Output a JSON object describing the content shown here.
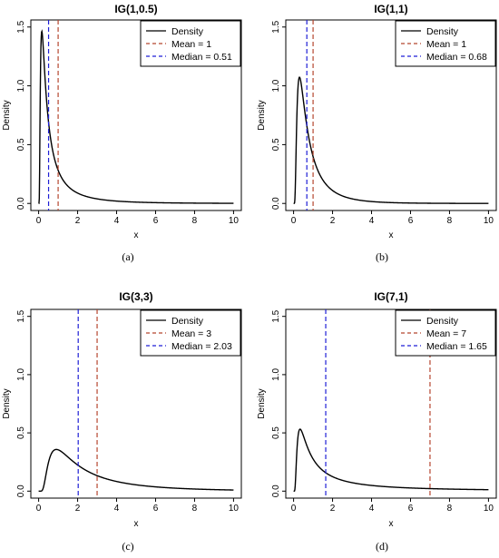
{
  "figure": {
    "captions": [
      "(a)",
      "(b)",
      "(c)",
      "(d)"
    ]
  },
  "chart_data": [
    {
      "type": "line",
      "title": "IG(1,0.5)",
      "xlabel": "x",
      "ylabel": "Density",
      "xlim": [
        0,
        10
      ],
      "ylim": [
        0,
        1.5
      ],
      "xticks": [
        0,
        2,
        4,
        6,
        8,
        10
      ],
      "yticks": [
        0.0,
        0.5,
        1.0,
        1.5
      ],
      "ytick_labels": [
        "0.0",
        "0.5",
        "1.0",
        "1.5"
      ],
      "ig_mean": 1,
      "ig_shape": 0.5,
      "mean": 1,
      "median": 0.51,
      "legend": {
        "placement": "top-right",
        "entries": [
          {
            "label": "Density",
            "color": "#000000",
            "dash": "solid"
          },
          {
            "label": "Mean = 1",
            "color": "#b5462f",
            "dash": "dashed"
          },
          {
            "label": "Median = 0.51",
            "color": "#1f1fd6",
            "dash": "dashed"
          }
        ]
      },
      "caption": "(a)"
    },
    {
      "type": "line",
      "title": "IG(1,1)",
      "xlabel": "x",
      "ylabel": "Density",
      "xlim": [
        0,
        10
      ],
      "ylim": [
        0,
        1.5
      ],
      "xticks": [
        0,
        2,
        4,
        6,
        8,
        10
      ],
      "yticks": [
        0.0,
        0.5,
        1.0,
        1.5
      ],
      "ytick_labels": [
        "0.0",
        "0.5",
        "1.0",
        "1.5"
      ],
      "ig_mean": 1,
      "ig_shape": 1,
      "mean": 1,
      "median": 0.68,
      "legend": {
        "placement": "top-right",
        "entries": [
          {
            "label": "Density",
            "color": "#000000",
            "dash": "solid"
          },
          {
            "label": "Mean = 1",
            "color": "#b5462f",
            "dash": "dashed"
          },
          {
            "label": "Median = 0.68",
            "color": "#1f1fd6",
            "dash": "dashed"
          }
        ]
      },
      "caption": "(b)"
    },
    {
      "type": "line",
      "title": "IG(3,3)",
      "xlabel": "x",
      "ylabel": "Density",
      "xlim": [
        0,
        10
      ],
      "ylim": [
        0,
        1.5
      ],
      "xticks": [
        0,
        2,
        4,
        6,
        8,
        10
      ],
      "yticks": [
        0.0,
        0.5,
        1.0,
        1.5
      ],
      "ytick_labels": [
        "0.0",
        "0.5",
        "1.0",
        "1.5"
      ],
      "ig_mean": 3,
      "ig_shape": 3,
      "mean": 3,
      "median": 2.03,
      "legend": {
        "placement": "top-right",
        "entries": [
          {
            "label": "Density",
            "color": "#000000",
            "dash": "solid"
          },
          {
            "label": "Mean = 3",
            "color": "#b5462f",
            "dash": "dashed"
          },
          {
            "label": "Median = 2.03",
            "color": "#1f1fd6",
            "dash": "dashed"
          }
        ]
      },
      "caption": "(c)"
    },
    {
      "type": "line",
      "title": "IG(7,1)",
      "xlabel": "x",
      "ylabel": "Density",
      "xlim": [
        0,
        10
      ],
      "ylim": [
        0,
        1.5
      ],
      "xticks": [
        0,
        2,
        4,
        6,
        8,
        10
      ],
      "yticks": [
        0.0,
        0.5,
        1.0,
        1.5
      ],
      "ytick_labels": [
        "0.0",
        "0.5",
        "1.0",
        "1.5"
      ],
      "ig_mean": 7,
      "ig_shape": 1,
      "mean": 7,
      "median": 1.65,
      "legend": {
        "placement": "top-right",
        "entries": [
          {
            "label": "Density",
            "color": "#000000",
            "dash": "solid"
          },
          {
            "label": "Mean = 7",
            "color": "#b5462f",
            "dash": "dashed"
          },
          {
            "label": "Median = 1.65",
            "color": "#1f1fd6",
            "dash": "dashed"
          }
        ]
      },
      "caption": "(d)"
    }
  ]
}
